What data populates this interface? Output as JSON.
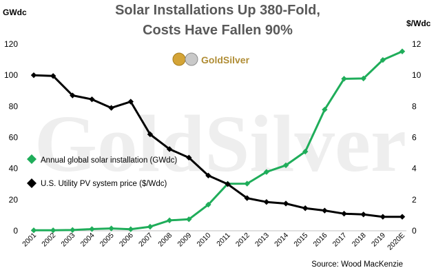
{
  "chart_data": {
    "type": "line",
    "title_line1": "Solar Installations Up 380-Fold,",
    "title_line2": "Costs Have Fallen 90%",
    "left_axis_label": "GWdc",
    "right_axis_label": "$/Wdc",
    "source": "Source: Wood MacKenzie",
    "logo_text": "GoldSilver",
    "watermark_text": "GoldSilver",
    "categories": [
      "2001",
      "2002",
      "2003",
      "2004",
      "2005",
      "2006",
      "2007",
      "2008",
      "2009",
      "2010",
      "2011",
      "2012",
      "2013",
      "2014",
      "2015",
      "2016",
      "2017",
      "2018",
      "2019",
      "2020E"
    ],
    "y_left": {
      "min": 0,
      "max": 120,
      "ticks": [
        0,
        20,
        40,
        60,
        80,
        100,
        120
      ]
    },
    "y_right": {
      "min": 0,
      "max": 12,
      "ticks": [
        0,
        2,
        4,
        6,
        8,
        10,
        12
      ]
    },
    "grid": false,
    "legend_position": "middle-left",
    "series": [
      {
        "name": "Annual global solar installation (GWdc)",
        "axis": "left",
        "color": "#1fad5a",
        "values": [
          0.3,
          0.3,
          0.5,
          1.1,
          1.5,
          1.0,
          2.6,
          6.7,
          7.4,
          16.8,
          30.2,
          30.3,
          37.8,
          42.1,
          50.9,
          77.9,
          97.7,
          97.9,
          109.8,
          115.3
        ]
      },
      {
        "name": "U.S. Utility PV system price ($/Wdc)",
        "axis": "right",
        "color": "#000000",
        "values": [
          10.0,
          9.95,
          8.7,
          8.45,
          7.9,
          8.3,
          6.2,
          5.25,
          4.7,
          3.55,
          3.0,
          2.1,
          1.85,
          1.75,
          1.45,
          1.3,
          1.1,
          1.05,
          0.9,
          0.9
        ]
      }
    ]
  },
  "colors": {
    "green": "#1fad5a",
    "black": "#000000",
    "title": "#595959",
    "axis": "#bfbfbf",
    "watermark": "#eeeeee"
  }
}
